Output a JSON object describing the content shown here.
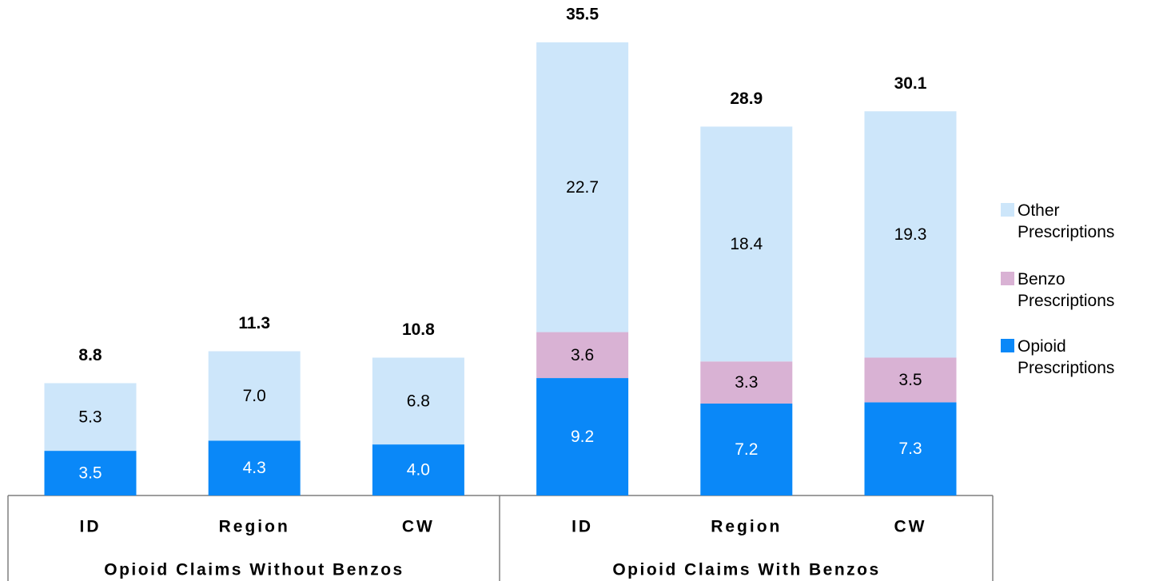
{
  "chart_data": {
    "type": "stacked_bar",
    "categories": [
      "ID",
      "Region",
      "CW",
      "ID",
      "Region",
      "CW"
    ],
    "groups": [
      "Opioid Claims Without Benzos",
      "Opioid Claims With Benzos"
    ],
    "series": [
      {
        "name": "Opioid Prescriptions",
        "color": "#0a88f8",
        "values": [
          3.5,
          4.3,
          4.0,
          9.2,
          7.2,
          7.3
        ],
        "value_labels": [
          "3.5",
          "4.3",
          "4.0",
          "9.2",
          "7.2",
          "7.3"
        ]
      },
      {
        "name": "Benzo Prescriptions",
        "color": "#d9b2d4",
        "values": [
          null,
          null,
          null,
          3.6,
          3.3,
          3.5
        ],
        "value_labels": [
          null,
          null,
          null,
          "3.6",
          "3.3",
          "3.5"
        ]
      },
      {
        "name": "Other Prescriptions",
        "color": "#cde6fa",
        "values": [
          5.3,
          7.0,
          6.8,
          22.7,
          18.4,
          19.3
        ],
        "value_labels": [
          "5.3",
          "7.0",
          "6.8",
          "22.7",
          "18.4",
          "19.3"
        ]
      }
    ],
    "totals": [
      8.8,
      11.3,
      10.8,
      35.5,
      28.9,
      30.1
    ]
  }
}
